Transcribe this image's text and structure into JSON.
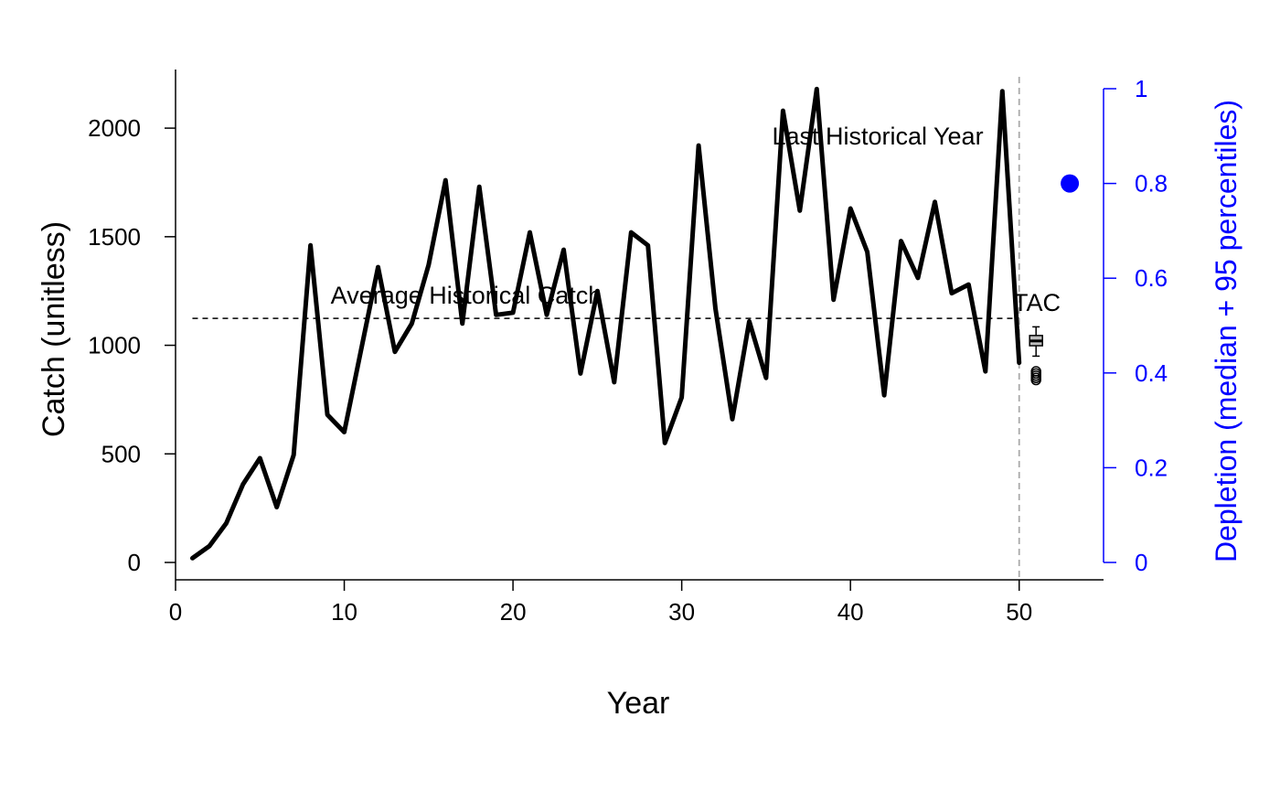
{
  "chart_data": {
    "type": "line",
    "xlabel": "Year",
    "ylabel": "Catch (unitless)",
    "y2label": "Depletion (median + 95 percentiles)",
    "xlim": [
      0,
      55
    ],
    "ylim": [
      -80,
      2270
    ],
    "y2lim": [
      0,
      1
    ],
    "x_ticks": [
      0,
      10,
      20,
      30,
      40,
      50
    ],
    "y_ticks": [
      0,
      500,
      1000,
      1500,
      2000
    ],
    "y2_ticks": [
      0,
      0.2,
      0.4,
      0.6,
      0.8,
      1
    ],
    "y2_tick_labels": [
      "0",
      "0.2",
      "0.4",
      "0.6",
      "0.8",
      "1"
    ],
    "grid": false,
    "series": [
      {
        "x": [
          1,
          2,
          3,
          4,
          5,
          6,
          7,
          8,
          9,
          10,
          11,
          12,
          13,
          14,
          15,
          16,
          17,
          18,
          19,
          20,
          21,
          22,
          23,
          24,
          25,
          26,
          27,
          28,
          29,
          30,
          31,
          32,
          33,
          34,
          35,
          36,
          37,
          38,
          39,
          40,
          41,
          42,
          43,
          44,
          45,
          46,
          47,
          48,
          49,
          50
        ],
        "values": [
          20,
          75,
          180,
          360,
          480,
          255,
          495,
          1460,
          680,
          600,
          980,
          1360,
          970,
          1100,
          1370,
          1760,
          1100,
          1730,
          1140,
          1150,
          1520,
          1140,
          1440,
          870,
          1250,
          830,
          1520,
          1460,
          550,
          760,
          1920,
          1170,
          660,
          1110,
          850,
          2080,
          1620,
          2180,
          1210,
          1630,
          1430,
          770,
          1480,
          1310,
          1660,
          1240,
          1280,
          880,
          2170,
          920
        ]
      }
    ],
    "average_historical_catch": 1124,
    "average_line_x_range": [
      1,
      50
    ],
    "last_historical_year": 50,
    "tac_boxplot": {
      "x": 51,
      "whisker_low": 950,
      "q1": 998,
      "median": 1020,
      "q3": 1045,
      "whisker_high": 1085,
      "outliers": [
        880,
        870,
        860,
        850,
        840
      ]
    },
    "depletion_point": {
      "x": 53,
      "value": 0.8
    },
    "annotations": {
      "average": "Average Historical Catch",
      "last_year": "Last Historical Year",
      "tac": "TAC"
    },
    "colors": {
      "series": "#000000",
      "depletion": "#0000ff",
      "last_year_line": "#aaaaaa",
      "box_fill": "#bdbdbd"
    }
  }
}
